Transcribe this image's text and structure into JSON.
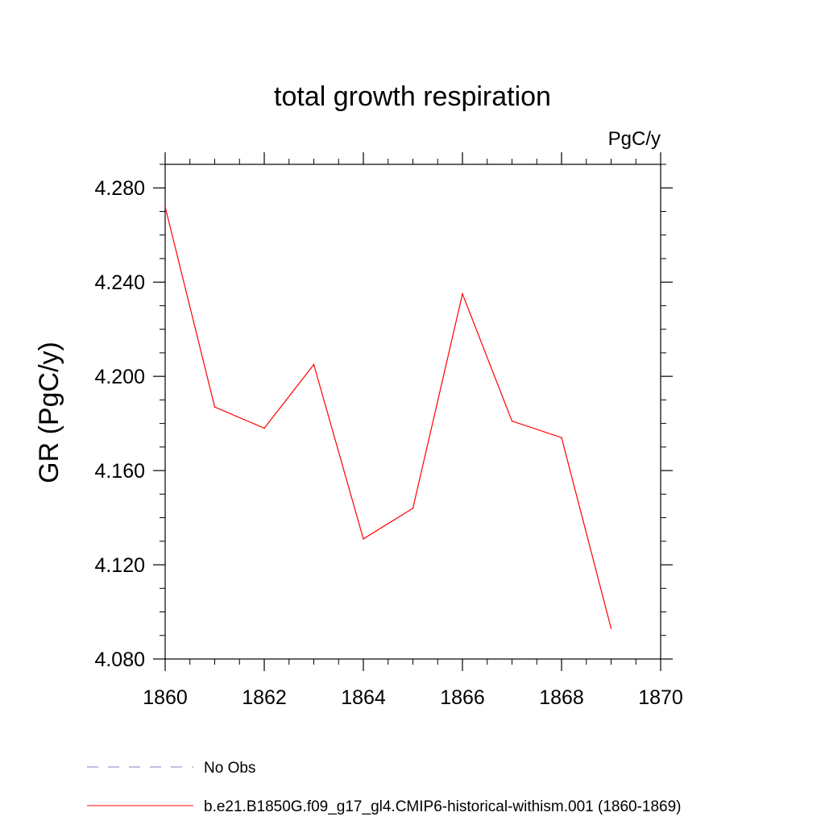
{
  "chart_data": {
    "type": "line",
    "title": "total growth respiration",
    "units_label": "PgC/y",
    "ylabel": "GR  (PgC/y)",
    "xlabel": "",
    "xlim": [
      1860,
      1870
    ],
    "ylim": [
      4.08,
      4.29
    ],
    "x_ticks": [
      "1860",
      "1862",
      "1864",
      "1866",
      "1868",
      "1870"
    ],
    "y_ticks": [
      "4.080",
      "4.120",
      "4.160",
      "4.200",
      "4.240",
      "4.280"
    ],
    "grid": false,
    "legend_placement": "bottom",
    "series": [
      {
        "name": "b.e21.B1850G.f09_g17_gl4.CMIP6-historical-withism.001 (1860-1869)",
        "color": "#ff0000",
        "style": "solid",
        "x": [
          1860,
          1861,
          1862,
          1863,
          1864,
          1865,
          1866,
          1867,
          1868,
          1869
        ],
        "values": [
          4.272,
          4.187,
          4.178,
          4.205,
          4.131,
          4.144,
          4.235,
          4.181,
          4.174,
          4.093
        ]
      }
    ],
    "legend": [
      {
        "label": "No Obs",
        "color": "#8080c0",
        "style": "dashed"
      },
      {
        "label": "b.e21.B1850G.f09_g17_gl4.CMIP6-historical-withism.001 (1860-1869)",
        "color": "#ff0000",
        "style": "solid"
      }
    ]
  }
}
